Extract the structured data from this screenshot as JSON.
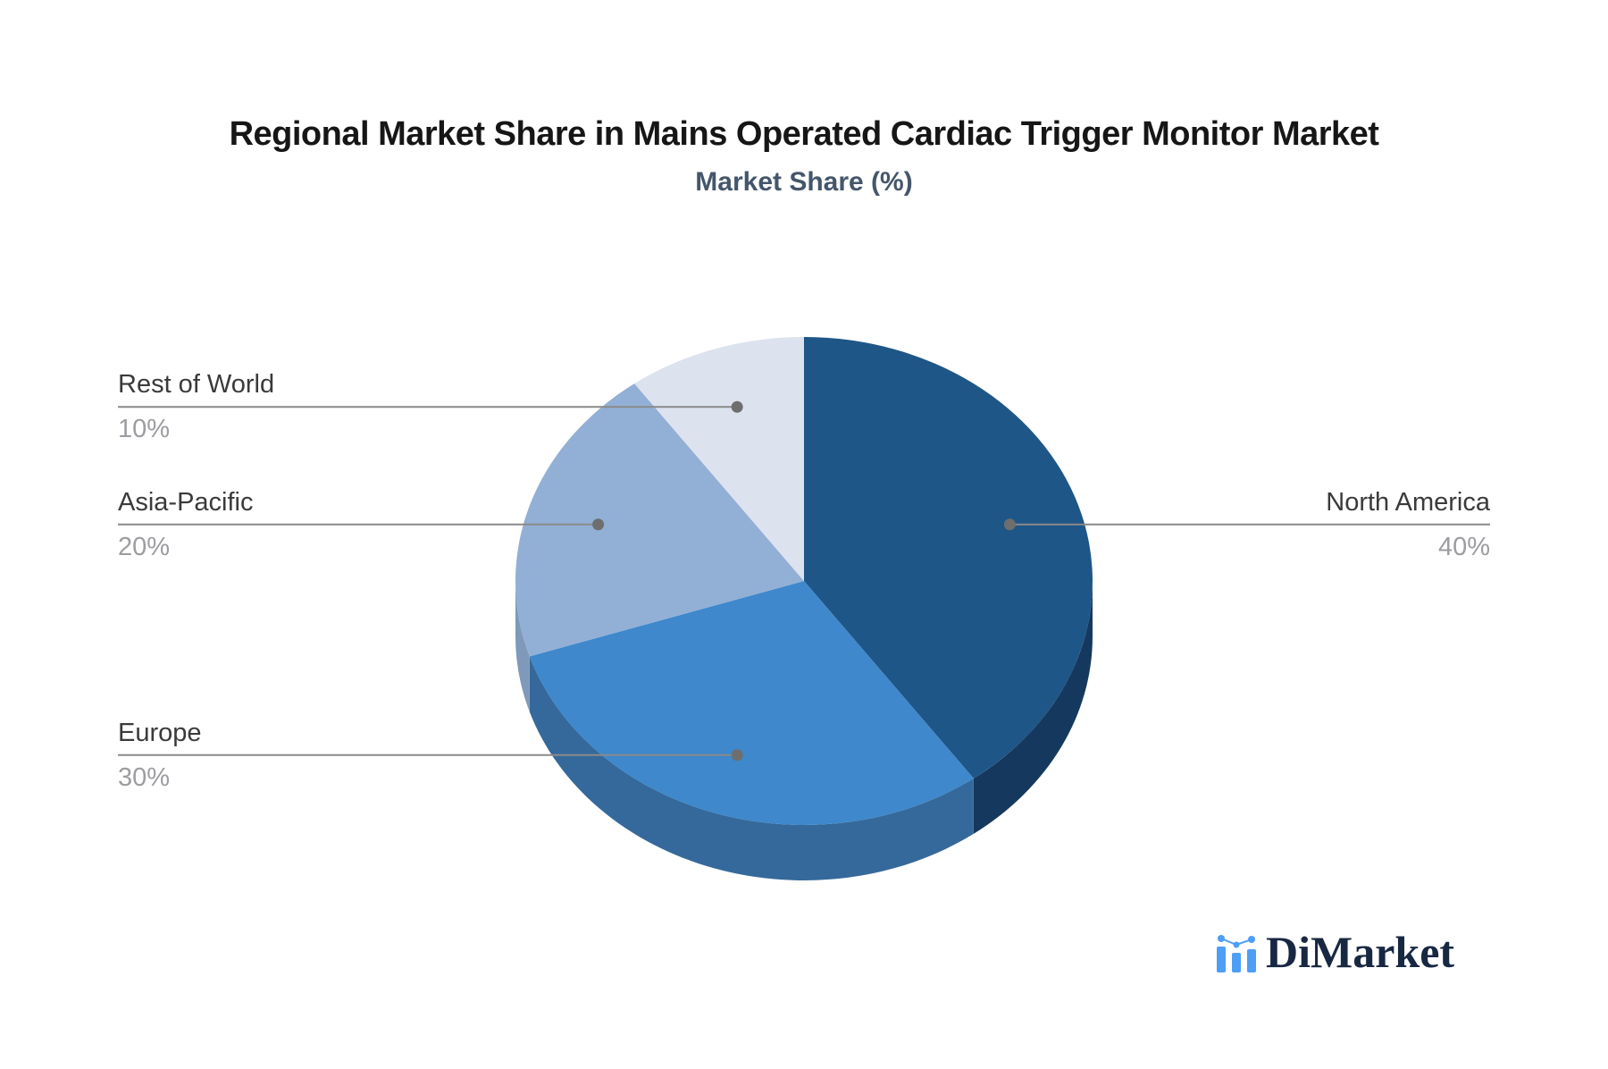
{
  "chart_data": {
    "type": "pie",
    "effect": "3d",
    "title": "Regional Market Share in Mains Operated Cardiac Trigger Monitor Market",
    "subtitle": "Market Share (%)",
    "unit": "%",
    "start_angle_deg": 0,
    "direction": "clockwise",
    "legend_position": "leader-line-labels",
    "slices": [
      {
        "label": "North America",
        "value": 40,
        "display_value": "40%",
        "color": "#1E5687",
        "side_color": "#15395E",
        "label_side": "right"
      },
      {
        "label": "Europe",
        "value": 30,
        "display_value": "30%",
        "color": "#3E88CB",
        "side_color": "#35699B",
        "label_side": "left"
      },
      {
        "label": "Asia-Pacific",
        "value": 20,
        "display_value": "20%",
        "color": "#92B0D5",
        "side_color": "#7E99B9",
        "label_side": "left"
      },
      {
        "label": "Rest of World",
        "value": 10,
        "display_value": "10%",
        "color": "#DCE3EF",
        "side_color": "#C2CDDE",
        "label_side": "left"
      }
    ],
    "styles": {
      "title_color": "#161616",
      "subtitle_color": "#44566B",
      "label_color": "#3A3A3A",
      "value_color": "#9C9CA1",
      "line_color": "#8A8A8A",
      "dot_color": "#6E6E6E",
      "background": "#ffffff"
    }
  },
  "brand": {
    "logo_text": "DiMarket",
    "logo_color": "#182742",
    "icon_color": "#4D9EF6",
    "icon_name": "mini-bar-line-chart"
  }
}
